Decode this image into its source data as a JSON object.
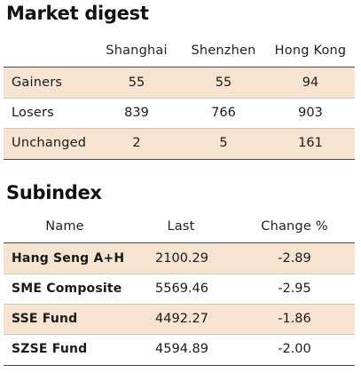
{
  "market_digest": {
    "title": "Market digest",
    "columns": [
      "Shanghai",
      "Shenzhen",
      "Hong Kong"
    ],
    "rows": [
      {
        "label": "Gainers",
        "values": [
          "55",
          "55",
          "94"
        ]
      },
      {
        "label": "Losers",
        "values": [
          "839",
          "766",
          "903"
        ]
      },
      {
        "label": "Unchanged",
        "values": [
          "2",
          "5",
          "161"
        ]
      }
    ],
    "row_shading": "#f6e3d0"
  },
  "subindex": {
    "title": "Subindex",
    "columns": [
      "Name",
      "Last",
      "Change %"
    ],
    "rows": [
      {
        "name": "Hang Seng A+H",
        "last": "2100.29",
        "change": "-2.89"
      },
      {
        "name": "SME Composite",
        "last": "5569.46",
        "change": "-2.95"
      },
      {
        "name": "SSE Fund",
        "last": "4492.27",
        "change": "-1.86"
      },
      {
        "name": "SZSE Fund",
        "last": "4594.89",
        "change": "-2.00"
      }
    ]
  }
}
